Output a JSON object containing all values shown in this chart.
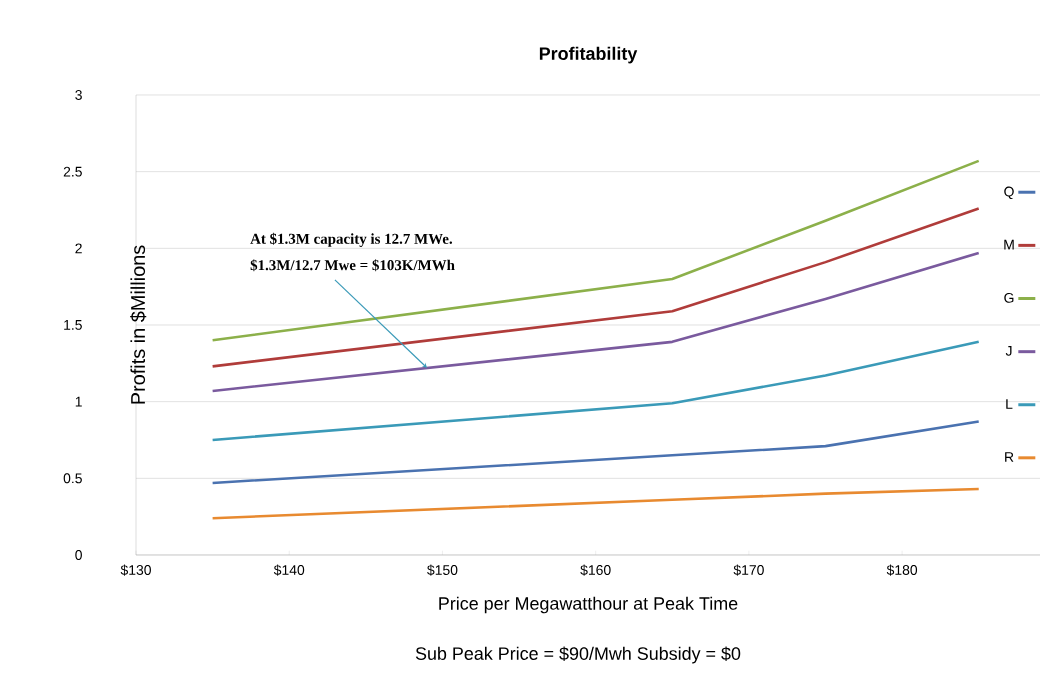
{
  "chart_data": {
    "type": "line",
    "title": "Profitability",
    "xlabel": "Price per Megawatthour at Peak Time",
    "ylabel": "Profits in $Millions",
    "x": [
      135,
      165,
      175,
      185
    ],
    "series": [
      {
        "name": "Q",
        "color": "#4a72b0",
        "values": [
          0.47,
          0.65,
          0.71,
          0.87
        ]
      },
      {
        "name": "M",
        "color": "#b03c3a",
        "values": [
          1.23,
          1.59,
          1.91,
          2.26
        ]
      },
      {
        "name": "G",
        "color": "#8cb04a",
        "values": [
          1.4,
          1.8,
          2.18,
          2.57
        ]
      },
      {
        "name": "J",
        "color": "#7a5a9e",
        "values": [
          1.07,
          1.39,
          1.67,
          1.97
        ]
      },
      {
        "name": "L",
        "color": "#3a9ab8",
        "values": [
          0.75,
          0.99,
          1.17,
          1.39
        ]
      },
      {
        "name": "R",
        "color": "#e88a30",
        "values": [
          0.24,
          0.36,
          0.4,
          0.43
        ]
      }
    ],
    "xlim": [
      130,
      189
    ],
    "ylim": [
      0,
      3
    ],
    "xticks": [
      {
        "value": 130,
        "label": "$130"
      },
      {
        "value": 140,
        "label": "$140"
      },
      {
        "value": 150,
        "label": "$150"
      },
      {
        "value": 160,
        "label": "$160"
      },
      {
        "value": 170,
        "label": "$170"
      },
      {
        "value": 180,
        "label": "$180"
      }
    ],
    "yticks": [
      0,
      0.5,
      1,
      1.5,
      2,
      2.5,
      3
    ],
    "grid": "y",
    "legend": "right",
    "marker": "none",
    "line_style": "solid",
    "annotations": [
      "At $1.3M capacity is 12.7 MWe.",
      {
        "text": "$1.3M/12.7 Mwe = $103K/MWh",
        "x": 149,
        "y": 1.22
      },
      "Sub Peak Price = $90/Mwh   Subsidy = $0"
    ]
  }
}
